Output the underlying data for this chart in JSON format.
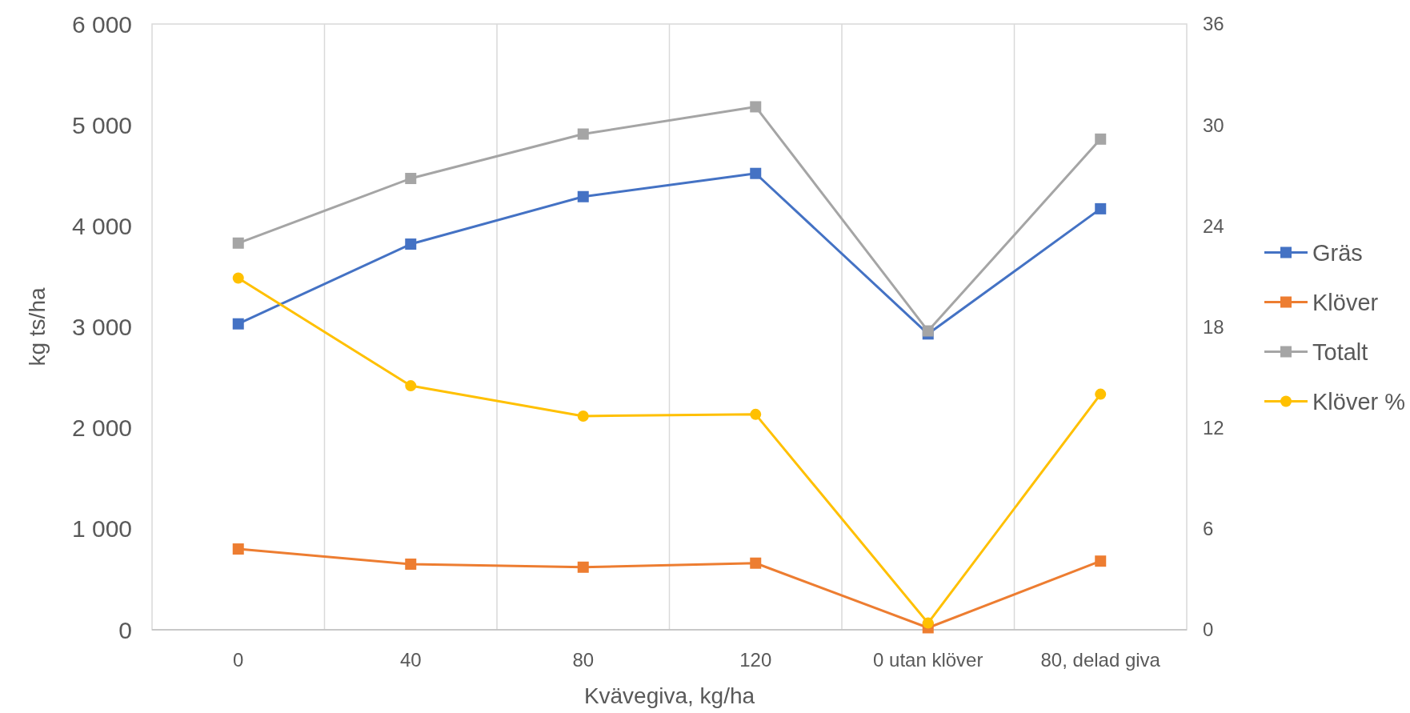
{
  "chart_data": {
    "type": "line",
    "xlabel": "Kvävegiva, kg/ha",
    "ylabel": "kg ts/ha",
    "categories": [
      "0",
      "40",
      "80",
      "120",
      "0 utan klöver",
      "80, delad giva"
    ],
    "series": [
      {
        "name": "Gräs",
        "color": "#4472c4",
        "marker": "square",
        "values": [
          3030,
          3820,
          4290,
          4520,
          2930,
          4170
        ]
      },
      {
        "name": "Klöver",
        "color": "#ed7d31",
        "marker": "square",
        "values": [
          800,
          650,
          620,
          660,
          20,
          680
        ]
      },
      {
        "name": "Totalt",
        "color": "#a5a5a5",
        "marker": "square",
        "values": [
          3830,
          4470,
          4910,
          5180,
          2960,
          4860
        ]
      },
      {
        "name": "Klöver %",
        "color": "#ffc000",
        "marker": "circle",
        "axis": "y2",
        "values": [
          20.9,
          14.5,
          12.7,
          12.8,
          0.4,
          14.0
        ]
      }
    ],
    "ylim": [
      0,
      6000
    ],
    "yticks": [
      0,
      {
        "value": 1000,
        "label": "1 000"
      },
      {
        "value": 2000,
        "label": "2 000"
      },
      {
        "value": 3000,
        "label": "3 000"
      },
      {
        "value": 4000,
        "label": "4 000"
      },
      {
        "value": 5000,
        "label": "5 000"
      },
      {
        "value": 6000,
        "label": "6 000"
      }
    ],
    "y2lim": [
      0,
      36
    ],
    "y2ticks": [
      0,
      6,
      12,
      18,
      24,
      30,
      36
    ],
    "grid": "x",
    "legend": "right",
    "line_style": "solid"
  }
}
